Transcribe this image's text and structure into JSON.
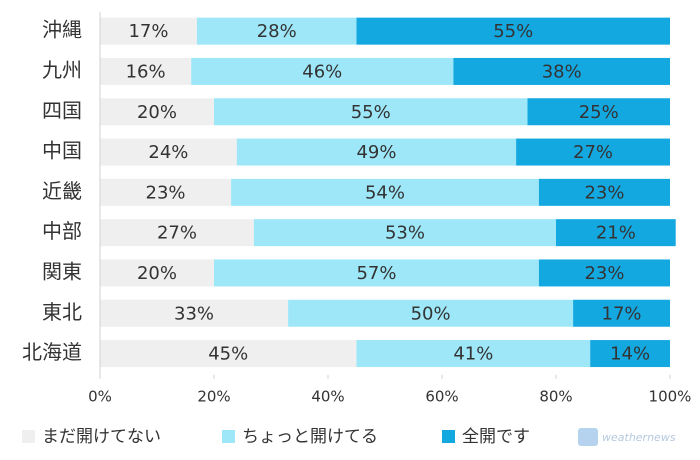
{
  "chart_data": {
    "type": "bar",
    "orientation": "horizontal",
    "stacked": true,
    "categories": [
      "沖縄",
      "九州",
      "四国",
      "中国",
      "近畿",
      "中部",
      "関東",
      "東北",
      "北海道"
    ],
    "series": [
      {
        "name": "まだ開けてない",
        "color": "#efefef",
        "values": [
          17,
          16,
          20,
          24,
          23,
          27,
          20,
          33,
          45
        ],
        "value_labels": [
          "17%",
          "16%",
          "20%",
          "24%",
          "23%",
          "27%",
          "20%",
          "33%",
          "45%"
        ]
      },
      {
        "name": "ちょっと開けてる",
        "color": "#9de7f8",
        "values": [
          28,
          46,
          55,
          49,
          54,
          53,
          57,
          50,
          41
        ],
        "value_labels": [
          "28%",
          "46%",
          "55%",
          "49%",
          "54%",
          "53%",
          "57%",
          "50%",
          "41%"
        ]
      },
      {
        "name": "全開です",
        "color": "#14a8e1",
        "values": [
          55,
          38,
          25,
          27,
          23,
          21,
          23,
          17,
          14
        ],
        "value_labels": [
          "55%",
          "38%",
          "25%",
          "27%",
          "23%",
          "21%",
          "23%",
          "17%",
          "14%"
        ]
      }
    ],
    "xlim": [
      0,
      100
    ],
    "xticks": [
      {
        "value": 0,
        "label": "0%"
      },
      {
        "value": 20,
        "label": "20%"
      },
      {
        "value": 40,
        "label": "40%"
      },
      {
        "value": 60,
        "label": "60%"
      },
      {
        "value": 80,
        "label": "80%"
      },
      {
        "value": 100,
        "label": "100%"
      }
    ],
    "grid": false,
    "legend": "bottom",
    "annotation": "weathernews"
  }
}
